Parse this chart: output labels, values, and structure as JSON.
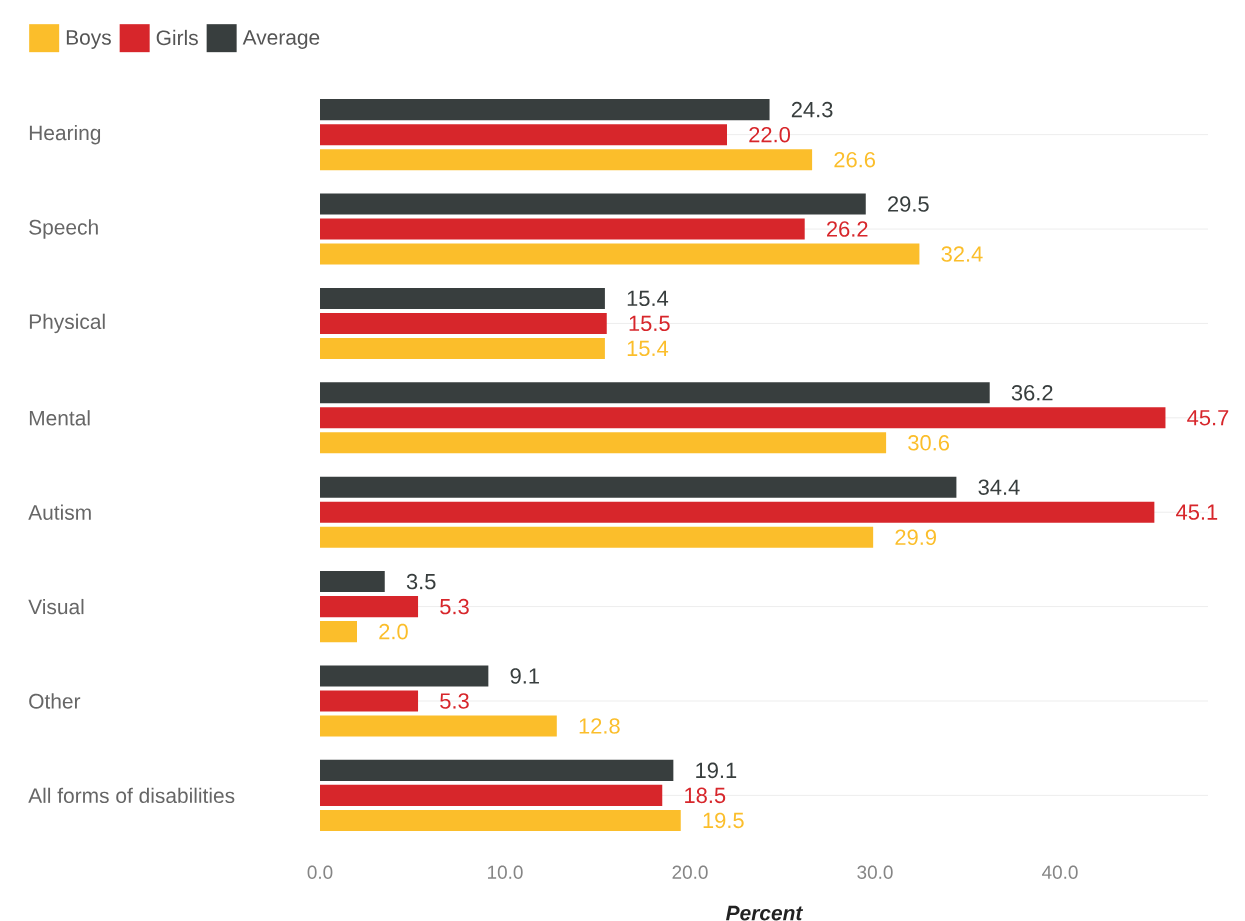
{
  "chart_data": {
    "type": "bar",
    "orientation": "horizontal",
    "xlabel": "Percent",
    "categories": [
      "Hearing",
      "Speech",
      "Physical",
      "Mental",
      "Autism",
      "Visual",
      "Other",
      "All forms of disabilities"
    ],
    "series": [
      {
        "name": "Boys",
        "color": "#fbbe2b",
        "values": [
          26.6,
          32.4,
          15.4,
          30.6,
          29.9,
          2.0,
          12.8,
          19.5
        ],
        "value_labels": [
          "26.6",
          "32.4",
          "15.4",
          "30.6",
          "29.9",
          "2.0",
          "12.8",
          "19.5"
        ]
      },
      {
        "name": "Girls",
        "color": "#d7262b",
        "values": [
          22.0,
          26.2,
          15.5,
          45.7,
          45.1,
          5.3,
          5.3,
          18.5
        ],
        "value_labels": [
          "22.0",
          "26.2",
          "15.5",
          "45.7",
          "45.1",
          "5.3",
          "5.3",
          "18.5"
        ]
      },
      {
        "name": "Average",
        "color": "#383e3e",
        "values": [
          24.3,
          29.5,
          15.4,
          36.2,
          34.4,
          3.5,
          9.1,
          19.1
        ],
        "value_labels": [
          "24.3",
          "29.5",
          "15.4",
          "36.2",
          "34.4",
          "3.5",
          "9.1",
          "19.1"
        ]
      }
    ],
    "xlim": [
      0,
      48
    ],
    "xticks": [
      {
        "value": 0,
        "label": "0.0"
      },
      {
        "value": 10,
        "label": "10.0"
      },
      {
        "value": 20,
        "label": "20.0"
      },
      {
        "value": 30,
        "label": "30.0"
      },
      {
        "value": 40,
        "label": "40.0"
      }
    ],
    "grid": "y",
    "legend": "top left"
  }
}
